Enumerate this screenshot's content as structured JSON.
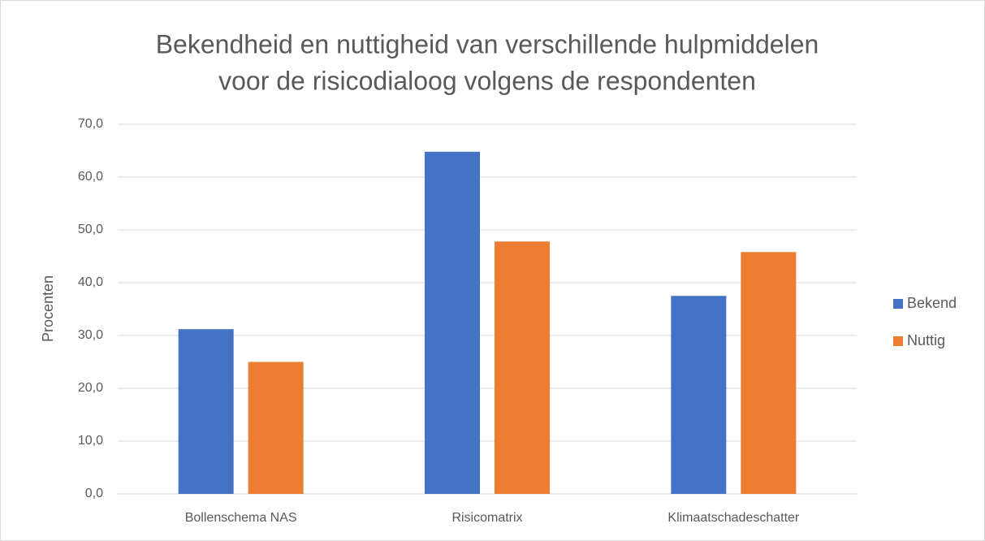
{
  "chart_data": {
    "type": "bar",
    "title": [
      "Bekendheid en nuttigheid van verschillende hulpmiddelen",
      "voor de risicodialoog volgens de respondenten"
    ],
    "y_label": "Procenten",
    "categories": [
      "Bollenschema NAS",
      "Risicomatrix",
      "Klimaatschadeschatter"
    ],
    "series": [
      {
        "name": "Bekend",
        "color": "#4472c4",
        "values": [
          31.2,
          64.8,
          37.5
        ]
      },
      {
        "name": "Nuttig",
        "color": "#ed7d31",
        "values": [
          25.0,
          47.8,
          45.8
        ]
      }
    ],
    "ylim": [
      0,
      70
    ],
    "yticks": [
      {
        "value": 0,
        "label": "0,0"
      },
      {
        "value": 10,
        "label": "10,0"
      },
      {
        "value": 20,
        "label": "20,0"
      },
      {
        "value": 30,
        "label": "30,0"
      },
      {
        "value": 40,
        "label": "40,0"
      },
      {
        "value": 50,
        "label": "50,0"
      },
      {
        "value": 60,
        "label": "60,0"
      },
      {
        "value": 70,
        "label": "70,0"
      }
    ],
    "grid": true,
    "legend": "right"
  }
}
